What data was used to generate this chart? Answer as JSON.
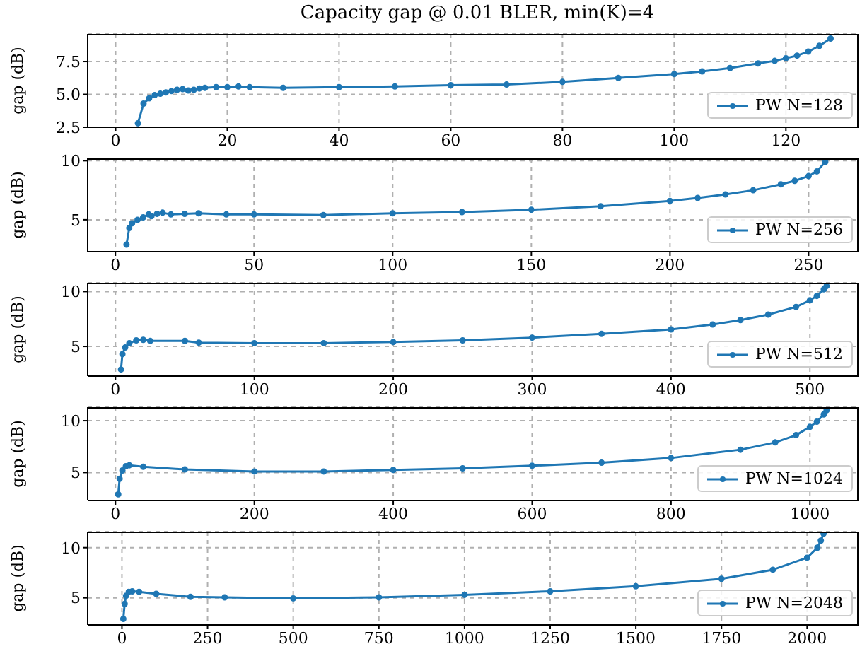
{
  "chart_data": [
    {
      "type": "line",
      "title": "Capacity gap @ 0.01 BLER, min(K)=4",
      "ylabel": "gap (dB)",
      "grid": true,
      "legend": "bottom right",
      "marker": "circle",
      "xlim": [
        -5,
        133
      ],
      "xticks": [
        0,
        20,
        40,
        60,
        80,
        100,
        120
      ],
      "ylim": [
        2.5,
        9.6
      ],
      "yticks": [
        2.5,
        {
          "value": 5,
          "label": "5.0"
        },
        {
          "value": 7.5,
          "label": "7.5"
        }
      ],
      "x": [
        4,
        5,
        6,
        7,
        8,
        9,
        10,
        11,
        12,
        13,
        14,
        15,
        16,
        18,
        20,
        22,
        24,
        30,
        40,
        50,
        60,
        70,
        80,
        90,
        100,
        105,
        110,
        115,
        118,
        120,
        122,
        124,
        126,
        128
      ],
      "series": [
        {
          "name": "PW N=128",
          "color": "#1f77b4",
          "values": [
            2.8,
            4.3,
            4.7,
            4.95,
            5.05,
            5.15,
            5.25,
            5.35,
            5.4,
            5.3,
            5.35,
            5.45,
            5.5,
            5.55,
            5.55,
            5.6,
            5.55,
            5.5,
            5.55,
            5.6,
            5.7,
            5.75,
            5.95,
            6.25,
            6.55,
            6.75,
            7.0,
            7.35,
            7.55,
            7.75,
            7.95,
            8.25,
            8.7,
            9.25
          ]
        }
      ]
    },
    {
      "type": "line",
      "ylabel": "gap (dB)",
      "grid": true,
      "legend": "bottom right",
      "marker": "circle",
      "xlim": [
        -10,
        268
      ],
      "xticks": [
        0,
        50,
        100,
        150,
        200,
        250
      ],
      "ylim": [
        2.3,
        10.2
      ],
      "yticks": [
        5,
        10
      ],
      "x": [
        4,
        5,
        6,
        8,
        10,
        12,
        13,
        15,
        17,
        20,
        25,
        30,
        40,
        50,
        75,
        100,
        125,
        150,
        175,
        200,
        210,
        220,
        230,
        240,
        245,
        250,
        253,
        256
      ],
      "series": [
        {
          "name": "PW N=256",
          "color": "#1f77b4",
          "values": [
            2.9,
            4.3,
            4.7,
            5.0,
            5.2,
            5.45,
            5.3,
            5.5,
            5.6,
            5.45,
            5.5,
            5.55,
            5.45,
            5.45,
            5.4,
            5.55,
            5.65,
            5.85,
            6.15,
            6.6,
            6.85,
            7.15,
            7.5,
            8.0,
            8.3,
            8.7,
            9.1,
            9.9
          ]
        }
      ]
    },
    {
      "type": "line",
      "ylabel": "gap (dB)",
      "grid": true,
      "legend": "bottom right",
      "marker": "circle",
      "xlim": [
        -20,
        535
      ],
      "xticks": [
        0,
        100,
        200,
        300,
        400,
        500
      ],
      "ylim": [
        2.3,
        10.8
      ],
      "yticks": [
        5,
        10
      ],
      "x": [
        4,
        5,
        7,
        10,
        15,
        20,
        25,
        50,
        60,
        100,
        150,
        200,
        250,
        300,
        350,
        400,
        430,
        450,
        470,
        490,
        500,
        505,
        510,
        512
      ],
      "series": [
        {
          "name": "PW N=512",
          "color": "#1f77b4",
          "values": [
            2.9,
            4.3,
            4.9,
            5.3,
            5.55,
            5.6,
            5.5,
            5.5,
            5.35,
            5.3,
            5.3,
            5.4,
            5.55,
            5.8,
            6.15,
            6.55,
            7.0,
            7.4,
            7.9,
            8.6,
            9.2,
            9.6,
            10.2,
            10.5
          ]
        }
      ]
    },
    {
      "type": "line",
      "ylabel": "gap (dB)",
      "grid": true,
      "legend": "bottom right",
      "marker": "circle",
      "xlim": [
        -40,
        1070
      ],
      "xticks": [
        0,
        200,
        400,
        600,
        800,
        1000
      ],
      "ylim": [
        2.3,
        11.3
      ],
      "yticks": [
        5,
        10
      ],
      "x": [
        4,
        6,
        10,
        15,
        20,
        40,
        100,
        200,
        300,
        400,
        500,
        600,
        700,
        800,
        900,
        950,
        980,
        1000,
        1010,
        1020,
        1024
      ],
      "series": [
        {
          "name": "PW N=1024",
          "color": "#1f77b4",
          "values": [
            2.9,
            4.4,
            5.2,
            5.6,
            5.7,
            5.55,
            5.3,
            5.1,
            5.1,
            5.25,
            5.4,
            5.65,
            5.95,
            6.4,
            7.2,
            7.9,
            8.6,
            9.4,
            9.9,
            10.6,
            11.0
          ]
        }
      ]
    },
    {
      "type": "line",
      "ylabel": "gap (dB)",
      "grid": true,
      "legend": "bottom right",
      "marker": "circle",
      "xlim": [
        -100,
        2150
      ],
      "xticks": [
        0,
        250,
        500,
        750,
        1000,
        1250,
        1500,
        1750,
        2000
      ],
      "ylim": [
        2.3,
        11.6
      ],
      "yticks": [
        5,
        10
      ],
      "x": [
        4,
        8,
        12,
        20,
        30,
        50,
        100,
        200,
        300,
        500,
        750,
        1000,
        1250,
        1500,
        1750,
        1900,
        2000,
        2030,
        2040,
        2048
      ],
      "series": [
        {
          "name": "PW N=2048",
          "color": "#1f77b4",
          "values": [
            2.9,
            4.4,
            5.2,
            5.6,
            5.65,
            5.6,
            5.4,
            5.1,
            5.05,
            4.95,
            5.05,
            5.3,
            5.65,
            6.15,
            6.9,
            7.8,
            9.0,
            10.0,
            10.7,
            11.4
          ]
        }
      ]
    }
  ]
}
